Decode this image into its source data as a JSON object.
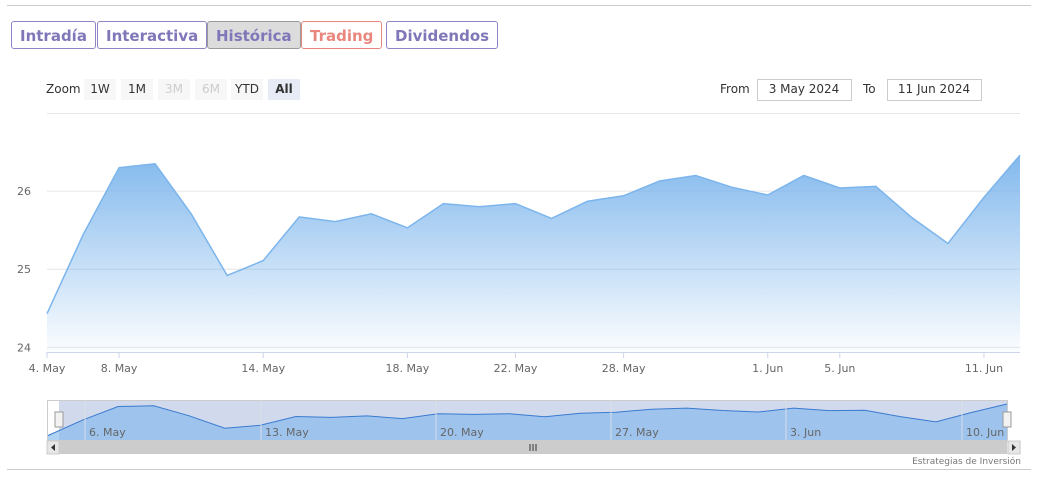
{
  "tabs": [
    "Intradía",
    "Interactiva",
    "Histórica",
    "Trading",
    "Dividendos"
  ],
  "zoom": {
    "label": "Zoom",
    "buttons": [
      "1W",
      "1M",
      "3M",
      "6M",
      "YTD",
      "All"
    ]
  },
  "range": {
    "from_label": "From",
    "from": "3 May 2024",
    "to_label": "To",
    "to": "11 Jun 2024"
  },
  "credit": "Estrategias de Inversión",
  "navigator": {
    "labels": [
      "6. May",
      "13. May",
      "20. May",
      "27. May",
      "3. Jun",
      "10. Jun"
    ]
  },
  "chart_data": {
    "type": "area",
    "color": "#7cb5ec",
    "categories": [
      "4. May",
      null,
      "8. May",
      null,
      null,
      null,
      "14. May",
      null,
      null,
      null,
      "18. May",
      null,
      null,
      "22. May",
      null,
      null,
      "28. May",
      null,
      null,
      null,
      "1. Jun",
      null,
      "5. Jun",
      null,
      null,
      null,
      "11. Jun",
      null
    ],
    "values": [
      24.43,
      25.44,
      26.3,
      26.35,
      25.71,
      24.92,
      25.11,
      25.67,
      25.61,
      25.71,
      25.53,
      25.84,
      25.8,
      25.84,
      25.65,
      25.87,
      25.94,
      26.13,
      26.2,
      26.05,
      25.95,
      26.2,
      26.04,
      26.06,
      25.66,
      25.33,
      25.92,
      26.46
    ],
    "ylim": [
      23.94,
      27
    ],
    "yticks": [
      24,
      25,
      26
    ],
    "grid": true
  }
}
